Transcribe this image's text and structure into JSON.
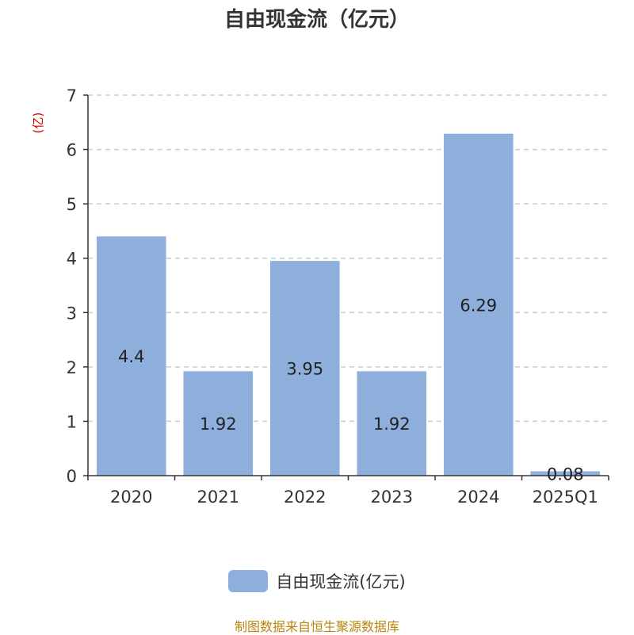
{
  "chart_data": {
    "type": "bar",
    "title": "自由现金流（亿元）",
    "ylabel": "(亿)",
    "categories": [
      "2020",
      "2021",
      "2022",
      "2023",
      "2024",
      "2025Q1"
    ],
    "series": [
      {
        "name": "自由现金流(亿元)",
        "values": [
          4.4,
          1.92,
          3.95,
          1.92,
          6.29,
          0.08
        ],
        "labels": [
          "4.4",
          "1.92",
          "3.95",
          "1.92",
          "6.29",
          "0.08"
        ]
      }
    ],
    "ylim": [
      0,
      7
    ],
    "yticks": [
      "0",
      "1",
      "2",
      "3",
      "4",
      "5",
      "6",
      "7"
    ],
    "grid": true,
    "legend_position": "bottom"
  },
  "colors": {
    "bar": "#8eaedc",
    "ylabel": "#cc0000",
    "grid": "#cccccc",
    "axis": "#333333",
    "source_note": "#b8860b"
  },
  "source_note": "制图数据来自恒生聚源数据库"
}
